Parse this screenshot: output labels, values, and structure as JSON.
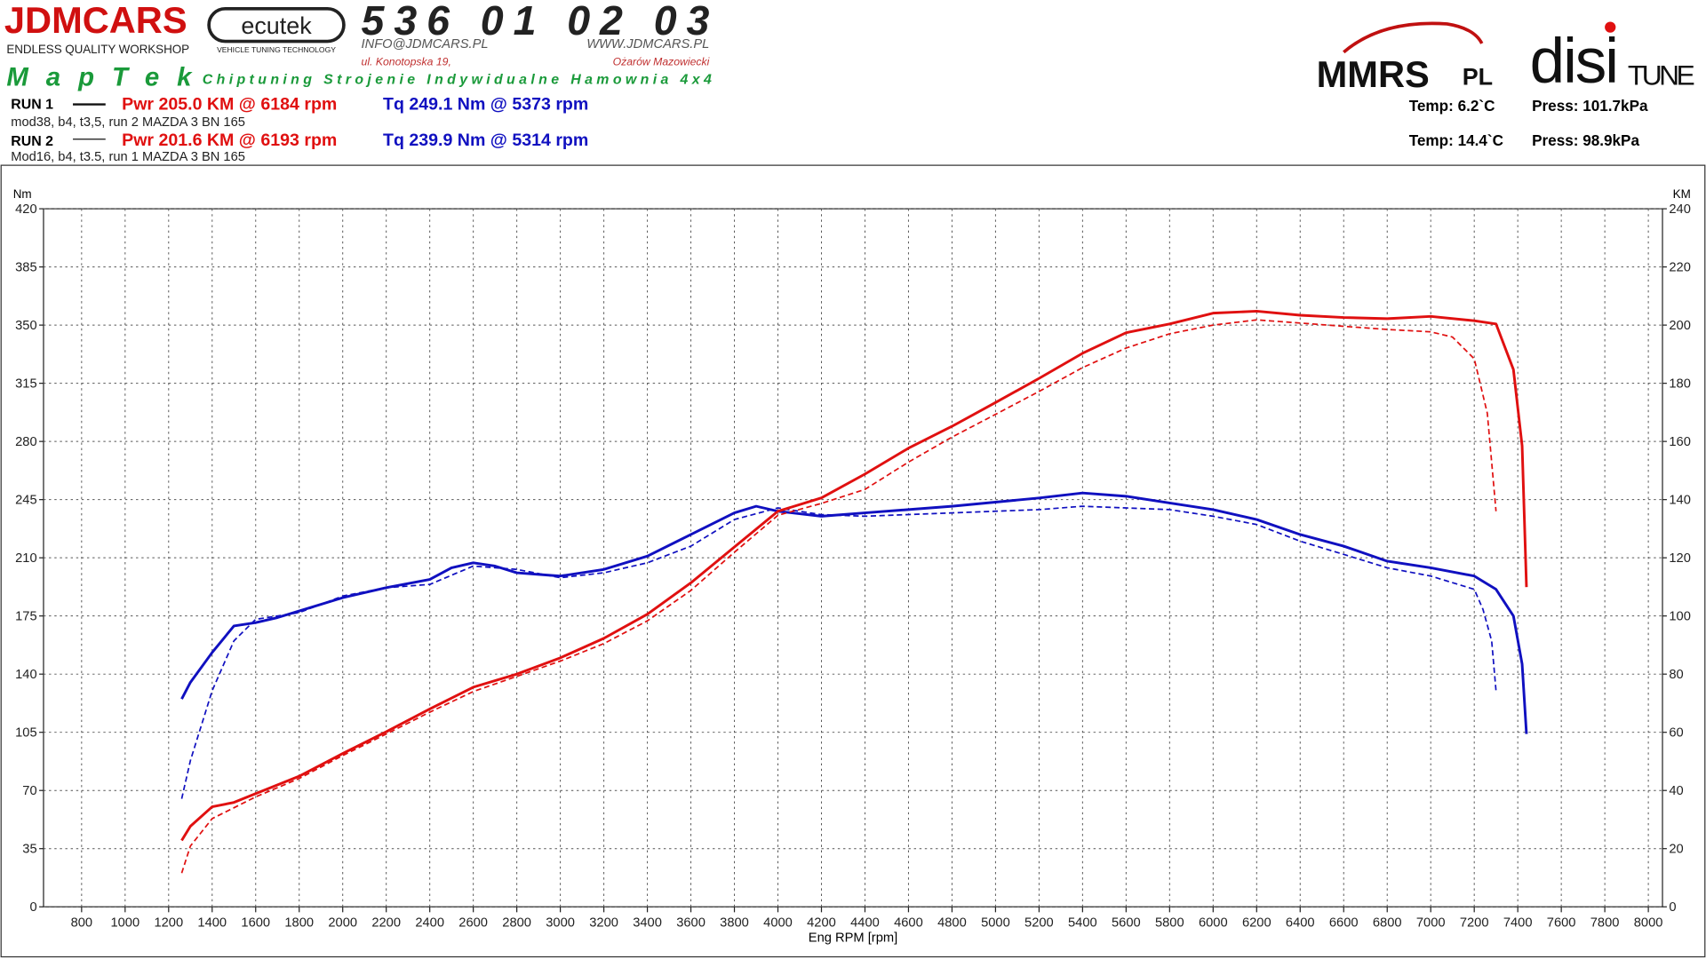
{
  "header": {
    "brand": "JDMCARS",
    "brand_sub": "ENDLESS QUALITY WORKSHOP",
    "ecutek": "ecutek",
    "ecutek_sub": "VEHICLE TUNING TECHNOLOGY",
    "phone": "536 01 02 03",
    "email": "INFO@JDMCARS.PL",
    "www": "WWW.JDMCARS.PL",
    "street": "ul. Konotopska 19,",
    "city": "Ożarów Mazowiecki",
    "maptek": "MapTek",
    "services": "Chiptuning Strojenie Indywidualne Hamownia 4x4",
    "mmrs": "MMRS",
    "mmrs_pl": "PL",
    "disi": "disi",
    "tune": "TUNE"
  },
  "runs": [
    {
      "label": "RUN 1",
      "pwr": "Pwr  205.0 KM @ 6184 rpm",
      "tq": "Tq 249.1 Nm @ 5373 rpm",
      "desc": "mod38, b4, t3,5, run 2 MAZDA 3 BN 165",
      "temp": "Temp: 6.2`C",
      "press": "Press: 101.7kPa"
    },
    {
      "label": "RUN 2",
      "pwr": "Pwr  201.6 KM @ 6193 rpm",
      "tq": "Tq 239.9 Nm @ 5314 rpm",
      "desc": "Mod16, b4, t3.5, run 1 MAZDA 3 BN 165",
      "temp": "Temp: 14.4`C",
      "press": "Press: 98.9kPa"
    }
  ],
  "chart_data": {
    "type": "line",
    "y_label": "Nm",
    "y2_label": "KM",
    "x_label": "Eng RPM [rpm]",
    "grid": true,
    "xlim": [
      625,
      8065
    ],
    "xticks": [
      800,
      1000,
      1200,
      1400,
      1600,
      1800,
      2000,
      2200,
      2400,
      2600,
      2800,
      3000,
      3200,
      3400,
      3600,
      3800,
      4000,
      4200,
      4400,
      4600,
      4800,
      5000,
      5200,
      5400,
      5600,
      5800,
      6000,
      6200,
      6400,
      6600,
      6800,
      7000,
      7200,
      7400,
      7600,
      7800,
      8000
    ],
    "ylim": [
      0,
      420
    ],
    "yticks": [
      0,
      35,
      70,
      105,
      140,
      175,
      210,
      245,
      280,
      315,
      350,
      385,
      420
    ],
    "y2lim": [
      0,
      240
    ],
    "y2ticks": [
      0,
      20,
      40,
      60,
      80,
      100,
      120,
      140,
      160,
      180,
      200,
      220,
      240
    ],
    "series": [
      {
        "color": "#1010c0",
        "dashed": false,
        "x": [
          1260,
          1300,
          1400,
          1500,
          1600,
          1700,
          1800,
          2000,
          2200,
          2400,
          2500,
          2600,
          2700,
          2800,
          3000,
          3200,
          3400,
          3600,
          3800,
          3900,
          4000,
          4200,
          4400,
          4800,
          5200,
          5400,
          5600,
          5800,
          6000,
          6200,
          6400,
          6600,
          6800,
          7000,
          7200,
          7300,
          7380,
          7420,
          7440
        ],
        "values": [
          125,
          135,
          153,
          169,
          171,
          174,
          178,
          186,
          192,
          197,
          204,
          207,
          205,
          201,
          199,
          203,
          211,
          224,
          237,
          241,
          238,
          235,
          237,
          241,
          246,
          249,
          247,
          243,
          239,
          233,
          224,
          217,
          208,
          204,
          199,
          191,
          175,
          146,
          104
        ]
      },
      {
        "color": "#1010c0",
        "dashed": true,
        "x": [
          1260,
          1300,
          1400,
          1500,
          1600,
          1800,
          2000,
          2200,
          2400,
          2600,
          2800,
          3000,
          3200,
          3400,
          3600,
          3800,
          4000,
          4200,
          4400,
          4800,
          5200,
          5400,
          5800,
          6000,
          6200,
          6400,
          6600,
          6800,
          7000,
          7200,
          7240,
          7280,
          7300
        ],
        "values": [
          65,
          88,
          130,
          160,
          173,
          177,
          187,
          192,
          194,
          205,
          203,
          198,
          201,
          207,
          217,
          233,
          240,
          236,
          235,
          237,
          239,
          241,
          239,
          235,
          230,
          220,
          212,
          204,
          199,
          191,
          179,
          160,
          130
        ]
      },
      {
        "color": "#e01010",
        "dashed": false,
        "axis": "y2",
        "x": [
          1260,
          1300,
          1400,
          1500,
          1600,
          1800,
          2000,
          2200,
          2400,
          2600,
          2800,
          3000,
          3200,
          3400,
          3600,
          3800,
          4000,
          4200,
          4400,
          4600,
          4800,
          5000,
          5200,
          5400,
          5600,
          5800,
          6000,
          6200,
          6400,
          6600,
          6800,
          7000,
          7200,
          7300,
          7380,
          7420,
          7440
        ],
        "values": [
          22.8,
          27.7,
          34.4,
          35.9,
          38.9,
          44.9,
          52.7,
          60.2,
          68,
          75.5,
          80,
          85.6,
          92.3,
          100.6,
          111.4,
          123.7,
          136,
          140.6,
          148.8,
          157.7,
          165.2,
          173.4,
          181.7,
          190.3,
          197.4,
          200.4,
          204.1,
          204.8,
          203.4,
          202.6,
          202.2,
          203,
          201.5,
          200.4,
          184.7,
          158.5,
          109.9
        ]
      },
      {
        "color": "#e01010",
        "dashed": true,
        "axis": "y2",
        "x": [
          1260,
          1300,
          1400,
          1600,
          1800,
          2000,
          2200,
          2400,
          2600,
          2800,
          3000,
          3200,
          3400,
          3600,
          3800,
          4000,
          4200,
          4400,
          4600,
          4800,
          5000,
          5200,
          5400,
          5600,
          5800,
          6000,
          6200,
          6400,
          6600,
          6800,
          7000,
          7100,
          7200,
          7260,
          7300
        ],
        "values": [
          11.6,
          20.9,
          30.3,
          37.8,
          44.1,
          52,
          59.4,
          66.9,
          74,
          79.2,
          84.5,
          90.5,
          98.3,
          108.8,
          121.9,
          134.6,
          138.7,
          143.5,
          152.9,
          161.5,
          169.3,
          177.2,
          185.4,
          192.1,
          197,
          200,
          201.8,
          200.7,
          199.6,
          198.5,
          197.7,
          195.9,
          188.4,
          169.7,
          136
        ]
      }
    ]
  }
}
